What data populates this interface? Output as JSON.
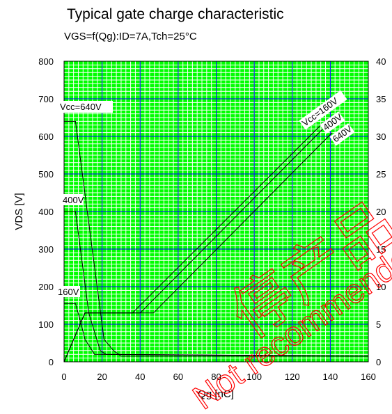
{
  "chart_data": {
    "type": "line",
    "title": "Typical gate charge characteristic",
    "subtitle": "VGS=f(Qg):ID=7A,Tch=25°C",
    "xlabel": "Qg [nC]",
    "ylabel": "VDS [V]",
    "xlim": [
      0,
      160
    ],
    "ylim_left": [
      0,
      800
    ],
    "ylim_right": [
      0,
      40
    ],
    "x_ticks": [
      "0",
      "20",
      "40",
      "60",
      "80",
      "100",
      "120",
      "140",
      "160"
    ],
    "y_ticks_left": [
      "0",
      "100",
      "200",
      "300",
      "400",
      "500",
      "600",
      "700",
      "800"
    ],
    "y_ticks_right": [
      "0",
      "5",
      "10",
      "15",
      "20",
      "25",
      "30",
      "35",
      "40"
    ],
    "grid": true,
    "colors": {
      "background": "#00ff00",
      "minor_grid": "#ffffff",
      "major_grid": "#0000ff",
      "curves": "#000000",
      "watermark": "#ff0000"
    },
    "series_vds": [
      {
        "name": "Vcc=640V",
        "x": [
          0,
          6,
          21,
          26,
          30,
          160
        ],
        "y": [
          640,
          640,
          60,
          30,
          15,
          15
        ]
      },
      {
        "name": "400V",
        "x": [
          0,
          6,
          13,
          19,
          22,
          160
        ],
        "y": [
          400,
          400,
          130,
          30,
          20,
          15
        ]
      },
      {
        "name": "160V",
        "x": [
          0,
          6,
          9,
          11,
          16,
          160
        ],
        "y": [
          155,
          155,
          100,
          60,
          20,
          15
        ]
      }
    ],
    "series_vgs": [
      {
        "name": "Vcc=160V",
        "x": [
          0,
          11,
          36,
          137
        ],
        "y": [
          0,
          6.5,
          6.5,
          32
        ]
      },
      {
        "name": "400V",
        "x": [
          0,
          11,
          40,
          140
        ],
        "y": [
          0,
          6.5,
          6.5,
          32
        ]
      },
      {
        "name": "640V",
        "x": [
          0,
          11,
          47,
          141
        ],
        "y": [
          0,
          6.5,
          6.5,
          30.5
        ]
      }
    ],
    "curve_labels": [
      "Vcc=640V",
      "400V",
      "160V",
      "Vcc=160V",
      "400V",
      "640V"
    ],
    "watermark": {
      "chinese": "停产品",
      "english": "Not recommended"
    }
  }
}
